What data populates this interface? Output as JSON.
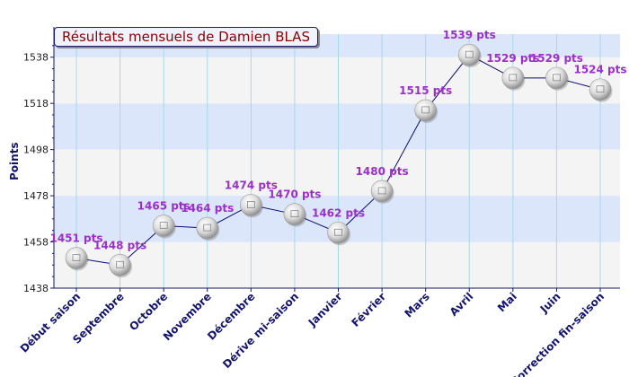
{
  "chart_data": {
    "type": "line",
    "title": "Résultats mensuels de Damien BLAS",
    "xlabel": "",
    "ylabel": "Points",
    "ylim": [
      1438,
      1548
    ],
    "yticks": [
      1438,
      1458,
      1478,
      1498,
      1518,
      1538
    ],
    "grid": true,
    "legend": "none",
    "categories": [
      "Début saison",
      "Septembre",
      "Octobre",
      "Novembre",
      "Décembre",
      "Dérive mi-saison",
      "Janvier",
      "Février",
      "Mars",
      "Avril",
      "Mai",
      "Juin",
      "Correction fin-saison"
    ],
    "values": [
      1451,
      1448,
      1465,
      1464,
      1474,
      1470,
      1462,
      1480,
      1515,
      1539,
      1529,
      1529,
      1524
    ],
    "data_labels": [
      "1451 pts",
      "1448 pts",
      "1465 pts",
      "1464 pts",
      "1474 pts",
      "1470 pts",
      "1462 pts",
      "1480 pts",
      "1515 pts",
      "1539 pts",
      "1529 pts",
      "1529 pts",
      "1524 pts"
    ],
    "colors": {
      "line": "#0a0a6e",
      "axis": "#14146e",
      "label": "#9b30c8",
      "band_light": "#f4f4f4",
      "band_blue": "#dce6fb",
      "grid": "#a8d8e8",
      "title_text": "#8b0000"
    }
  }
}
